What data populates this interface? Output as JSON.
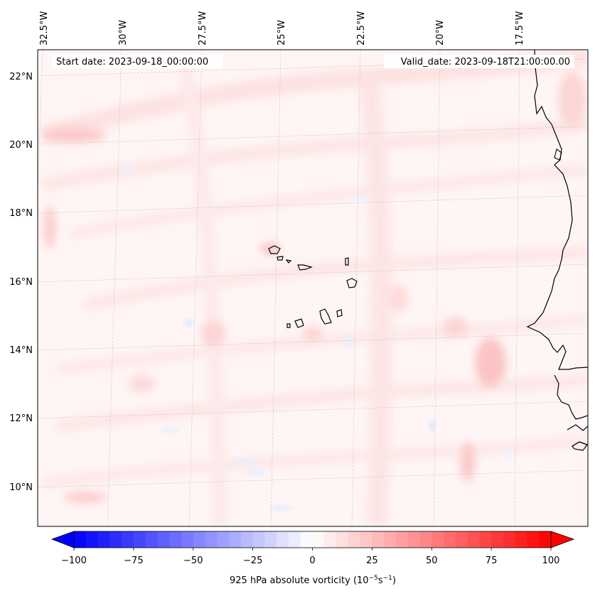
{
  "map": {
    "start_date": "Start date: 2023-09-18_00:00:00",
    "valid_date": "Valid_date: 2023-09-18T21:00:00.00",
    "longitude_labels": [
      "32.5°W",
      "30°W",
      "27.5°W",
      "25°W",
      "22.5°W",
      "20°W",
      "17.5°W"
    ],
    "latitude_labels": [
      "22°N",
      "20°N",
      "18°N",
      "16°N",
      "14°N",
      "12°N",
      "10°N"
    ],
    "features": {
      "coastline": "West Africa coastline",
      "islands": "Cape Verde islands"
    }
  },
  "colorbar": {
    "min": -100,
    "max": 100,
    "tick_labels": [
      "−100",
      "−75",
      "−50",
      "−25",
      "0",
      "25",
      "50",
      "75",
      "100"
    ],
    "label_prefix": "925 hPa absolute vorticity (10",
    "label_exp1": "−5",
    "label_mid": "s",
    "label_exp2": "−1",
    "label_suffix": ")",
    "colors": {
      "negative": "#0000ff",
      "zero": "#ffffff",
      "positive": "#ff0000"
    }
  }
}
